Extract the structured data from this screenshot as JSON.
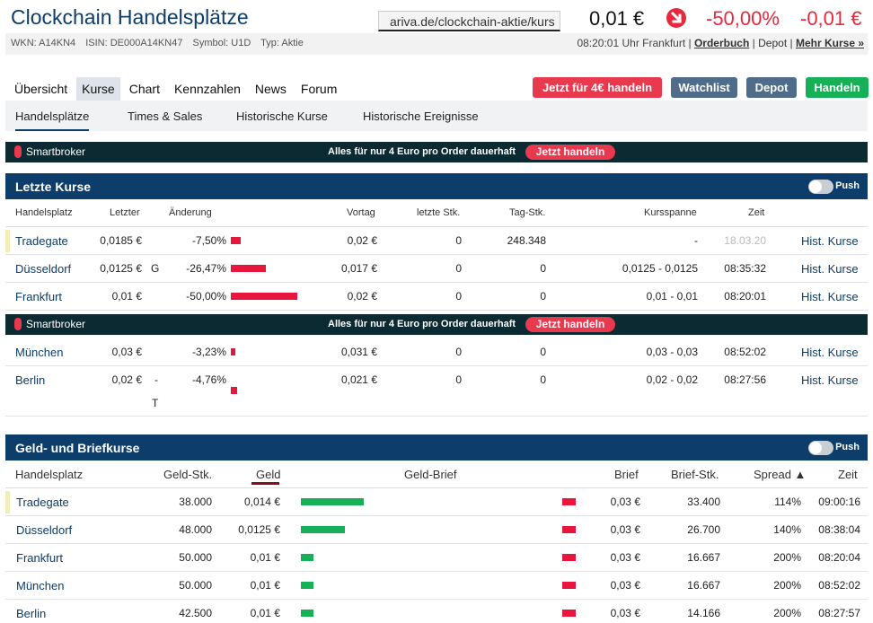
{
  "header": {
    "title": "Clockchain Handelsplätze",
    "url": "ariva.de/clockchain-aktie/kurs",
    "price": "0,01 €",
    "change_pct": "-50,00%",
    "change_abs": "-0,01 €",
    "wkn": "WKN: A14KN4",
    "isin": "ISIN: DE000A14KN47",
    "symbol": "Symbol: U1D",
    "type": "Typ: Aktie",
    "time_text": "08:20:01 Uhr Frankfurt |",
    "orderbuch": "Orderbuch",
    "sep": "|",
    "depot_link": "Depot",
    "mehr_kurse": "Mehr Kurse »",
    "accent_red": "#e8293d",
    "brand_blue": "#0d3d6b"
  },
  "nav": {
    "tabs": [
      {
        "label": "Übersicht"
      },
      {
        "label": "Kurse"
      },
      {
        "label": "Chart"
      },
      {
        "label": "Kennzahlen"
      },
      {
        "label": "News"
      },
      {
        "label": "Forum"
      }
    ],
    "buttons": {
      "trade4": "Jetzt für 4€ handeln",
      "watchlist": "Watchlist",
      "depot": "Depot",
      "handeln": "Handeln"
    },
    "subtabs": [
      {
        "label": "Handelsplätze"
      },
      {
        "label": "Times & Sales"
      },
      {
        "label": "Historische Kurse"
      },
      {
        "label": "Historische Ereignisse"
      }
    ]
  },
  "ad": {
    "brand": "Smartbroker",
    "text": "Alles für nur 4 Euro pro Order dauerhaft",
    "cta": "Jetzt handeln"
  },
  "letzte_kurse": {
    "title": "Letzte Kurse",
    "push": "Push",
    "columns": {
      "handelsplatz": "Handelsplatz",
      "letzter": "Letzter",
      "aenderung": "Änderung",
      "vortag": "Vortag",
      "letzte_stk": "letzte Stk.",
      "tag_stk": "Tag-Stk.",
      "kursspanne": "Kursspanne",
      "zeit": "Zeit"
    },
    "rows": [
      {
        "name": "Tradegate",
        "letzter": "0,0185 €",
        "flag": "",
        "change": "-7,50%",
        "bar_pct": 7.5,
        "vortag": "0,02 €",
        "letzte_stk": "0",
        "tag_stk": "248.348",
        "spanne": "-",
        "zeit": "18.03.20",
        "hist": "Hist. Kurse"
      },
      {
        "name": "Düsseldorf",
        "letzter": "0,0125 €",
        "flag": "G",
        "change": "-26,47%",
        "bar_pct": 26.47,
        "vortag": "0,017 €",
        "letzte_stk": "0",
        "tag_stk": "0",
        "spanne": "0,0125 - 0,0125",
        "zeit": "08:35:32",
        "hist": "Hist. Kurse"
      },
      {
        "name": "Frankfurt",
        "letzter": "0,01 €",
        "flag": "",
        "change": "-50,00%",
        "bar_pct": 50.0,
        "vortag": "0,02 €",
        "letzte_stk": "0",
        "tag_stk": "0",
        "spanne": "0,01 - 0,01",
        "zeit": "08:20:01",
        "hist": "Hist. Kurse"
      },
      {
        "name": "München",
        "letzter": "0,03 €",
        "flag": "",
        "change": "-3,23%",
        "bar_pct": 3.23,
        "vortag": "0,031 €",
        "letzte_stk": "0",
        "tag_stk": "0",
        "spanne": "0,03 - 0,03",
        "zeit": "08:52:02",
        "hist": "Hist. Kurse"
      },
      {
        "name": "Berlin",
        "letzter": "0,02 €",
        "flag": "-",
        "flag2": "T",
        "change": "-4,76%",
        "bar_pct": 4.76,
        "vortag": "0,021 €",
        "letzte_stk": "0",
        "tag_stk": "0",
        "spanne": "0,02 - 0,02",
        "zeit": "08:27:56",
        "hist": "Hist. Kurse"
      }
    ]
  },
  "geld_brief": {
    "title": "Geld- und Briefkurse",
    "push": "Push",
    "columns": {
      "handelsplatz": "Handelsplatz",
      "geld_stk": "Geld-Stk.",
      "geld": "Geld",
      "geld_brief": "Geld-Brief",
      "brief": "Brief",
      "brief_stk": "Brief-Stk.",
      "spread": "Spread ▲",
      "zeit": "Zeit"
    },
    "rows": [
      {
        "name": "Tradegate",
        "geld_stk": "38.000",
        "geld": "0,014 €",
        "geld_share": 1.0,
        "brief": "0,03 €",
        "brief_stk": "33.400",
        "spread": "114%",
        "zeit": "09:00:16"
      },
      {
        "name": "Düsseldorf",
        "geld_stk": "48.000",
        "geld": "0,0125 €",
        "geld_share": 0.7,
        "brief": "0,03 €",
        "brief_stk": "26.700",
        "spread": "140%",
        "zeit": "08:38:04"
      },
      {
        "name": "Frankfurt",
        "geld_stk": "50.000",
        "geld": "0,01 €",
        "geld_share": 0.2,
        "brief": "0,03 €",
        "brief_stk": "16.667",
        "spread": "200%",
        "zeit": "08:20:04"
      },
      {
        "name": "München",
        "geld_stk": "50.000",
        "geld": "0,01 €",
        "geld_share": 0.2,
        "brief": "0,03 €",
        "brief_stk": "16.667",
        "spread": "200%",
        "zeit": "08:52:02"
      },
      {
        "name": "Berlin",
        "geld_stk": "42.500",
        "geld": "0,01 €",
        "geld_share": 0.2,
        "brief": "0,03 €",
        "brief_stk": "14.166",
        "spread": "200%",
        "zeit": "08:27:57"
      }
    ]
  }
}
